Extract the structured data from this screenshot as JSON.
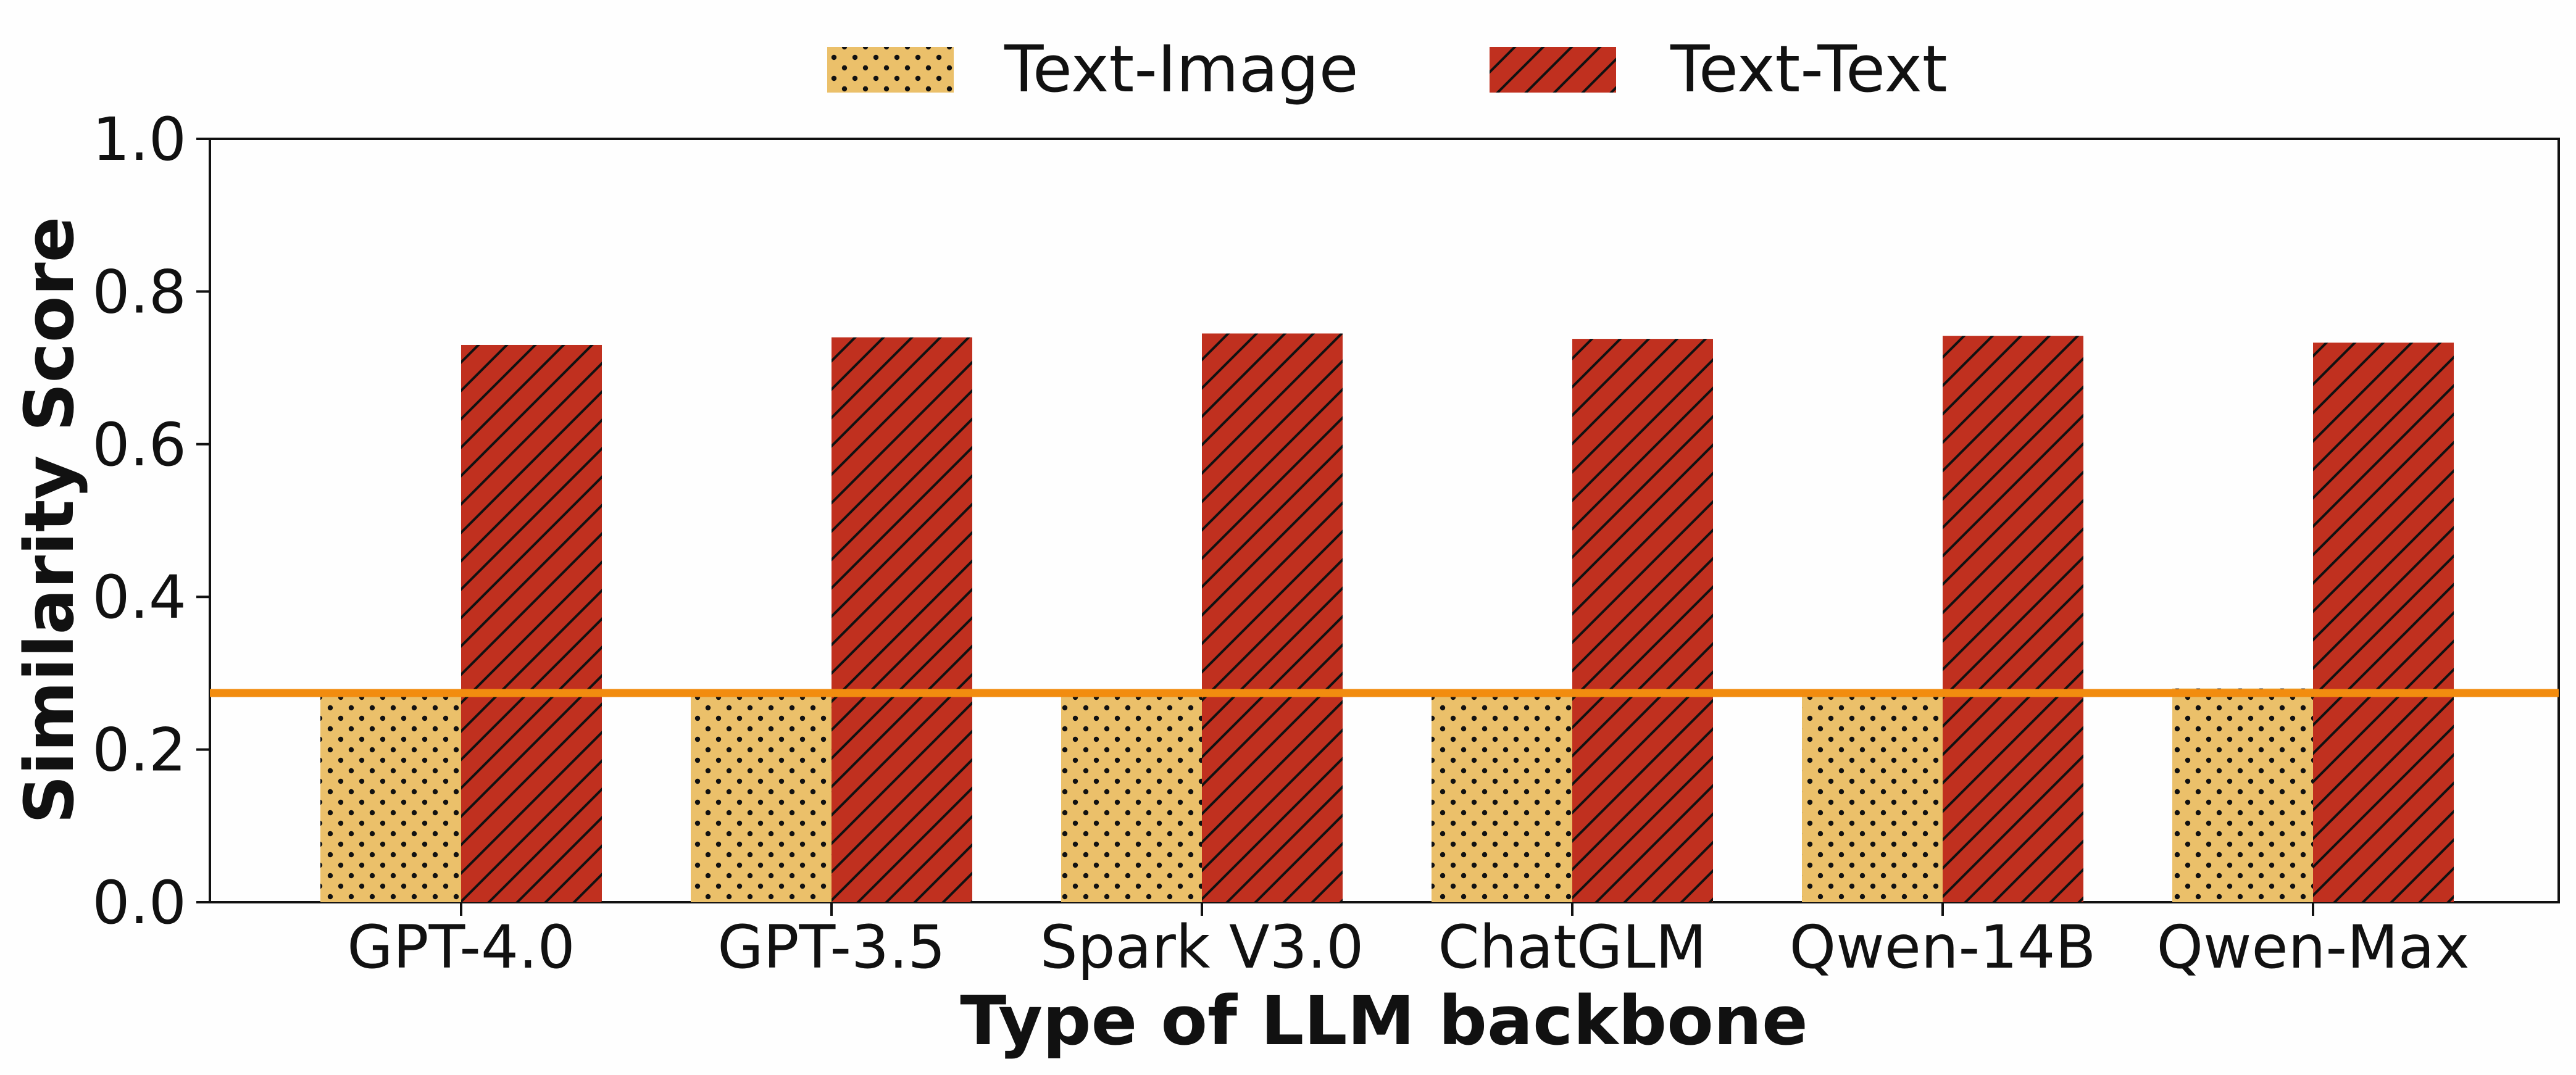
{
  "chart_data": {
    "type": "bar",
    "title": "",
    "xlabel": "Type of LLM backbone",
    "ylabel": "Similarity Score",
    "categories": [
      "GPT-4.0",
      "GPT-3.5",
      "Spark V3.0",
      "ChatGLM",
      "Qwen-14B",
      "Qwen-Max"
    ],
    "series": [
      {
        "name": "Text-Image",
        "values": [
          0.27,
          0.27,
          0.27,
          0.27,
          0.27,
          0.28
        ],
        "color": "#EBC06A",
        "pattern": "dots"
      },
      {
        "name": "Text-Text",
        "values": [
          0.73,
          0.74,
          0.745,
          0.738,
          0.742,
          0.733
        ],
        "color": "#C0301F",
        "pattern": "diagonal-hatch"
      }
    ],
    "ylim": [
      0.0,
      1.0
    ],
    "yticks": [
      "0.0",
      "0.2",
      "0.4",
      "0.6",
      "0.8",
      "1.0"
    ],
    "reference_line": {
      "y": 0.274,
      "color": "#F28C0F"
    },
    "grid": false,
    "legend_position": "top-center"
  }
}
